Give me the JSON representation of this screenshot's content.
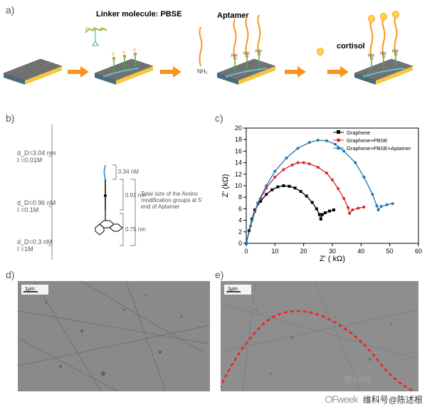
{
  "panelA": {
    "label": "a)",
    "steps": [
      {
        "title": "Linker molecule: PBSE"
      },
      {
        "title": "Aptamer"
      },
      {
        "title": "cortisol"
      }
    ],
    "arrow_color": "#f7941d",
    "linker_color": "#39b54a",
    "aptamer_color": "#f7941d",
    "substrate_top": "#666666",
    "substrate_side1": "#f5c842",
    "substrate_side2": "#4a6b7c",
    "nh_label": "NH₂",
    "nh2_label": "NH"
  },
  "panelB": {
    "label": "b)",
    "dims": [
      {
        "d": "d_D=3.04 nm",
        "I": "I =0.01M"
      },
      {
        "d": "d_D=0.96 nM",
        "I": "I =0.1M"
      },
      {
        "d": "d_D=0.3 nM",
        "I": "I =1M"
      }
    ],
    "note": "Total size of the Amino modification groups at 5' end of Aptamer",
    "seg1": "0.34 nM",
    "seg2": "0.91 nm",
    "seg3": "0.75 nm"
  },
  "panelC": {
    "label": "c)",
    "xlabel": "Z' ( kΩ)",
    "ylabel": "Z' (kΩ)",
    "xlim": [
      0,
      60
    ],
    "xtick": 10,
    "ylim": [
      0,
      20
    ],
    "ytick": 2,
    "series": [
      {
        "name": "Graphene",
        "color": "#000000",
        "marker": "square",
        "diameter": 26,
        "pts": [
          [
            0,
            0
          ],
          [
            1,
            2.2
          ],
          [
            2,
            4.2
          ],
          [
            3,
            5.8
          ],
          [
            5,
            7.3
          ],
          [
            7,
            8.5
          ],
          [
            9,
            9.3
          ],
          [
            11,
            9.8
          ],
          [
            13,
            10
          ],
          [
            15,
            9.9
          ],
          [
            17,
            9.6
          ],
          [
            19,
            9
          ],
          [
            21,
            8.2
          ],
          [
            23,
            7.1
          ],
          [
            24.5,
            6
          ],
          [
            25.5,
            5
          ],
          [
            26,
            4.2
          ],
          [
            26.5,
            5
          ],
          [
            27.5,
            5.3
          ],
          [
            29,
            5.6
          ],
          [
            30.5,
            5.8
          ]
        ]
      },
      {
        "name": "Graphene+PBSE",
        "color": "#d62728",
        "marker": "circle",
        "diameter": 36,
        "pts": [
          [
            0,
            0
          ],
          [
            1.5,
            3
          ],
          [
            3,
            5.5
          ],
          [
            5,
            7.8
          ],
          [
            7,
            9.6
          ],
          [
            10,
            11.5
          ],
          [
            13,
            12.8
          ],
          [
            16,
            13.6
          ],
          [
            18,
            14
          ],
          [
            20,
            14
          ],
          [
            22,
            13.8
          ],
          [
            25,
            13.2
          ],
          [
            28,
            12.2
          ],
          [
            30,
            11
          ],
          [
            32,
            9.5
          ],
          [
            34,
            7.8
          ],
          [
            35.5,
            6.2
          ],
          [
            36,
            5.2
          ],
          [
            37,
            5.8
          ],
          [
            39,
            6.1
          ],
          [
            41,
            6.3
          ]
        ]
      },
      {
        "name": "Graphene+PBSE+Aptamer",
        "color": "#1f77b4",
        "marker": "circle",
        "diameter": 46,
        "pts": [
          [
            0,
            0
          ],
          [
            2,
            4
          ],
          [
            4,
            7
          ],
          [
            7,
            10
          ],
          [
            10,
            12.5
          ],
          [
            14,
            14.8
          ],
          [
            18,
            16.5
          ],
          [
            22,
            17.5
          ],
          [
            25,
            17.9
          ],
          [
            28,
            17.8
          ],
          [
            31,
            17.2
          ],
          [
            34,
            16
          ],
          [
            38,
            14
          ],
          [
            41,
            11.5
          ],
          [
            44,
            8.5
          ],
          [
            45.5,
            6.5
          ],
          [
            46,
            5.8
          ],
          [
            47,
            6.4
          ],
          [
            49,
            6.7
          ],
          [
            51,
            6.9
          ]
        ]
      }
    ]
  },
  "panelD": {
    "label": "d)",
    "scale": "1μm",
    "bg": "#8a8a8a"
  },
  "panelE": {
    "label": "e)",
    "scale": "1μm",
    "bg": "#8e8e8e",
    "outline": "#ff1a1a"
  },
  "watermark": "维科网",
  "footer": {
    "logo": "OFweek",
    "text": "维科号@陈述根"
  }
}
